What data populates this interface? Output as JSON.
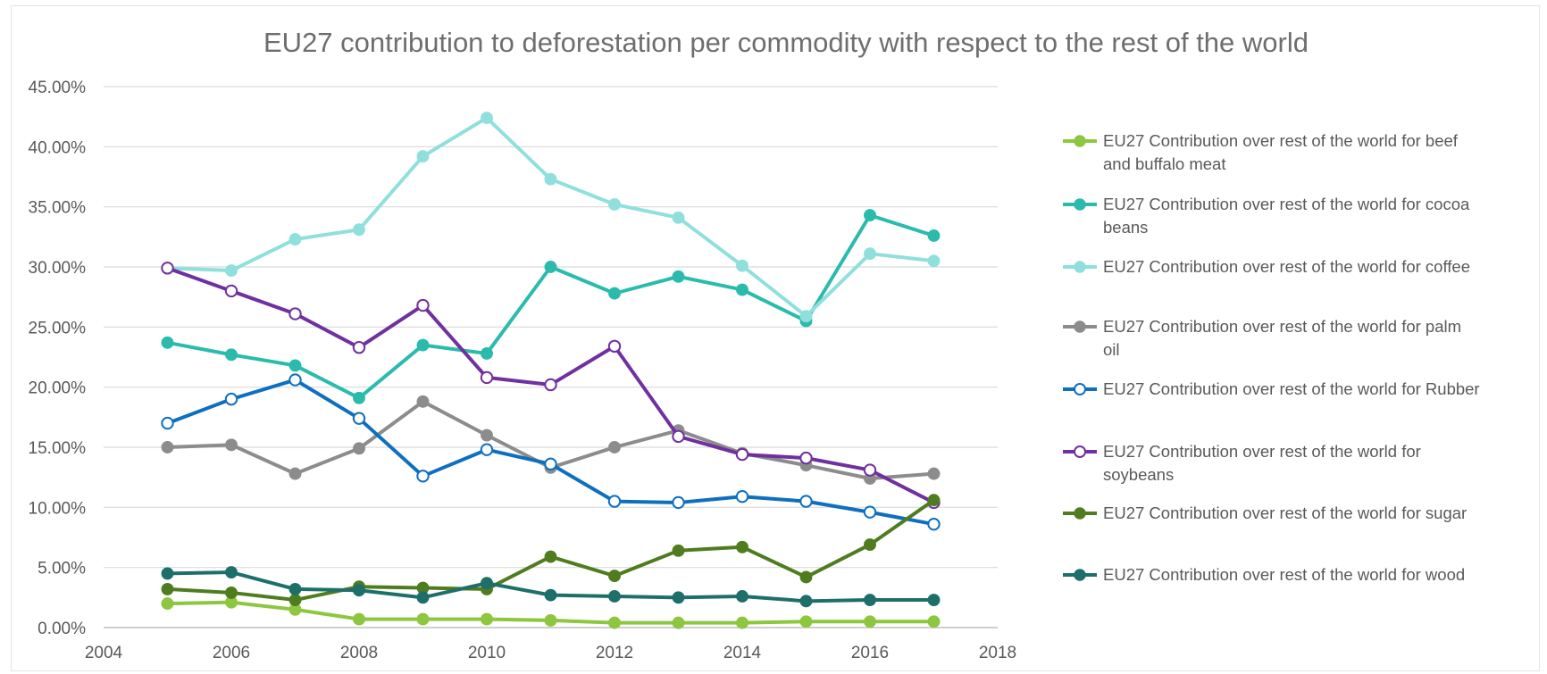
{
  "chart_data": {
    "type": "line",
    "title": "EU27 contribution to deforestation per commodity with respect to the rest of the world",
    "xlabel": "",
    "ylabel": "",
    "xlim": [
      2004,
      2018
    ],
    "ylim": [
      0,
      0.45
    ],
    "x_ticks": [
      "2004",
      "2006",
      "2008",
      "2010",
      "2012",
      "2014",
      "2016",
      "2018"
    ],
    "y_ticks": [
      "0.00%",
      "5.00%",
      "10.00%",
      "15.00%",
      "20.00%",
      "25.00%",
      "30.00%",
      "35.00%",
      "40.00%",
      "45.00%"
    ],
    "grid": true,
    "legend_position": "right",
    "x": [
      2005,
      2006,
      2007,
      2008,
      2009,
      2010,
      2011,
      2012,
      2013,
      2014,
      2015,
      2016,
      2017
    ],
    "series": [
      {
        "name": "EU27 Contribution over rest of the world for beef and buffalo meat",
        "color": "#8dc63f",
        "marker": "filled",
        "values": [
          0.02,
          0.021,
          0.015,
          0.007,
          0.007,
          0.007,
          0.006,
          0.004,
          0.004,
          0.004,
          0.005,
          0.005,
          0.005
        ]
      },
      {
        "name": "EU27 Contribution over rest of the world for cocoa beans",
        "color": "#2bbbad",
        "marker": "filled",
        "values": [
          0.237,
          0.227,
          0.218,
          0.191,
          0.235,
          0.228,
          0.3,
          0.278,
          0.292,
          0.281,
          0.255,
          0.343,
          0.326
        ]
      },
      {
        "name": "EU27 Contribution over rest of the world for coffee",
        "color": "#8fe0dc",
        "marker": "filled",
        "values": [
          0.299,
          0.297,
          0.323,
          0.331,
          0.392,
          0.424,
          0.373,
          0.352,
          0.341,
          0.301,
          0.259,
          0.311,
          0.305
        ]
      },
      {
        "name": "EU27 Contribution over rest of the world for palm oil",
        "color": "#8c8c8c",
        "marker": "filled",
        "values": [
          0.15,
          0.152,
          0.128,
          0.149,
          0.188,
          0.16,
          0.133,
          0.15,
          0.164,
          0.145,
          0.135,
          0.124,
          0.128
        ]
      },
      {
        "name": "EU27 Contribution over rest of the world for Rubber",
        "color": "#0f6fbf",
        "marker": "open",
        "values": [
          0.17,
          0.19,
          0.206,
          0.174,
          0.126,
          0.148,
          0.136,
          0.105,
          0.104,
          0.109,
          0.105,
          0.096,
          0.086
        ]
      },
      {
        "name": "EU27 Contribution over rest of the world for soybeans",
        "color": "#7030a0",
        "marker": "open",
        "values": [
          0.299,
          0.28,
          0.261,
          0.233,
          0.268,
          0.208,
          0.202,
          0.234,
          0.159,
          0.144,
          0.141,
          0.131,
          0.104
        ]
      },
      {
        "name": "EU27 Contribution over rest of the world for sugar",
        "color": "#4f7c1e",
        "marker": "filled",
        "values": [
          0.032,
          0.029,
          0.023,
          0.034,
          0.033,
          0.032,
          0.059,
          0.043,
          0.064,
          0.067,
          0.042,
          0.069,
          0.106
        ]
      },
      {
        "name": "EU27 Contribution over rest of the world for wood",
        "color": "#1d6f6a",
        "marker": "filled",
        "values": [
          0.045,
          0.046,
          0.032,
          0.031,
          0.025,
          0.037,
          0.027,
          0.026,
          0.025,
          0.026,
          0.022,
          0.023,
          0.023
        ]
      }
    ]
  }
}
